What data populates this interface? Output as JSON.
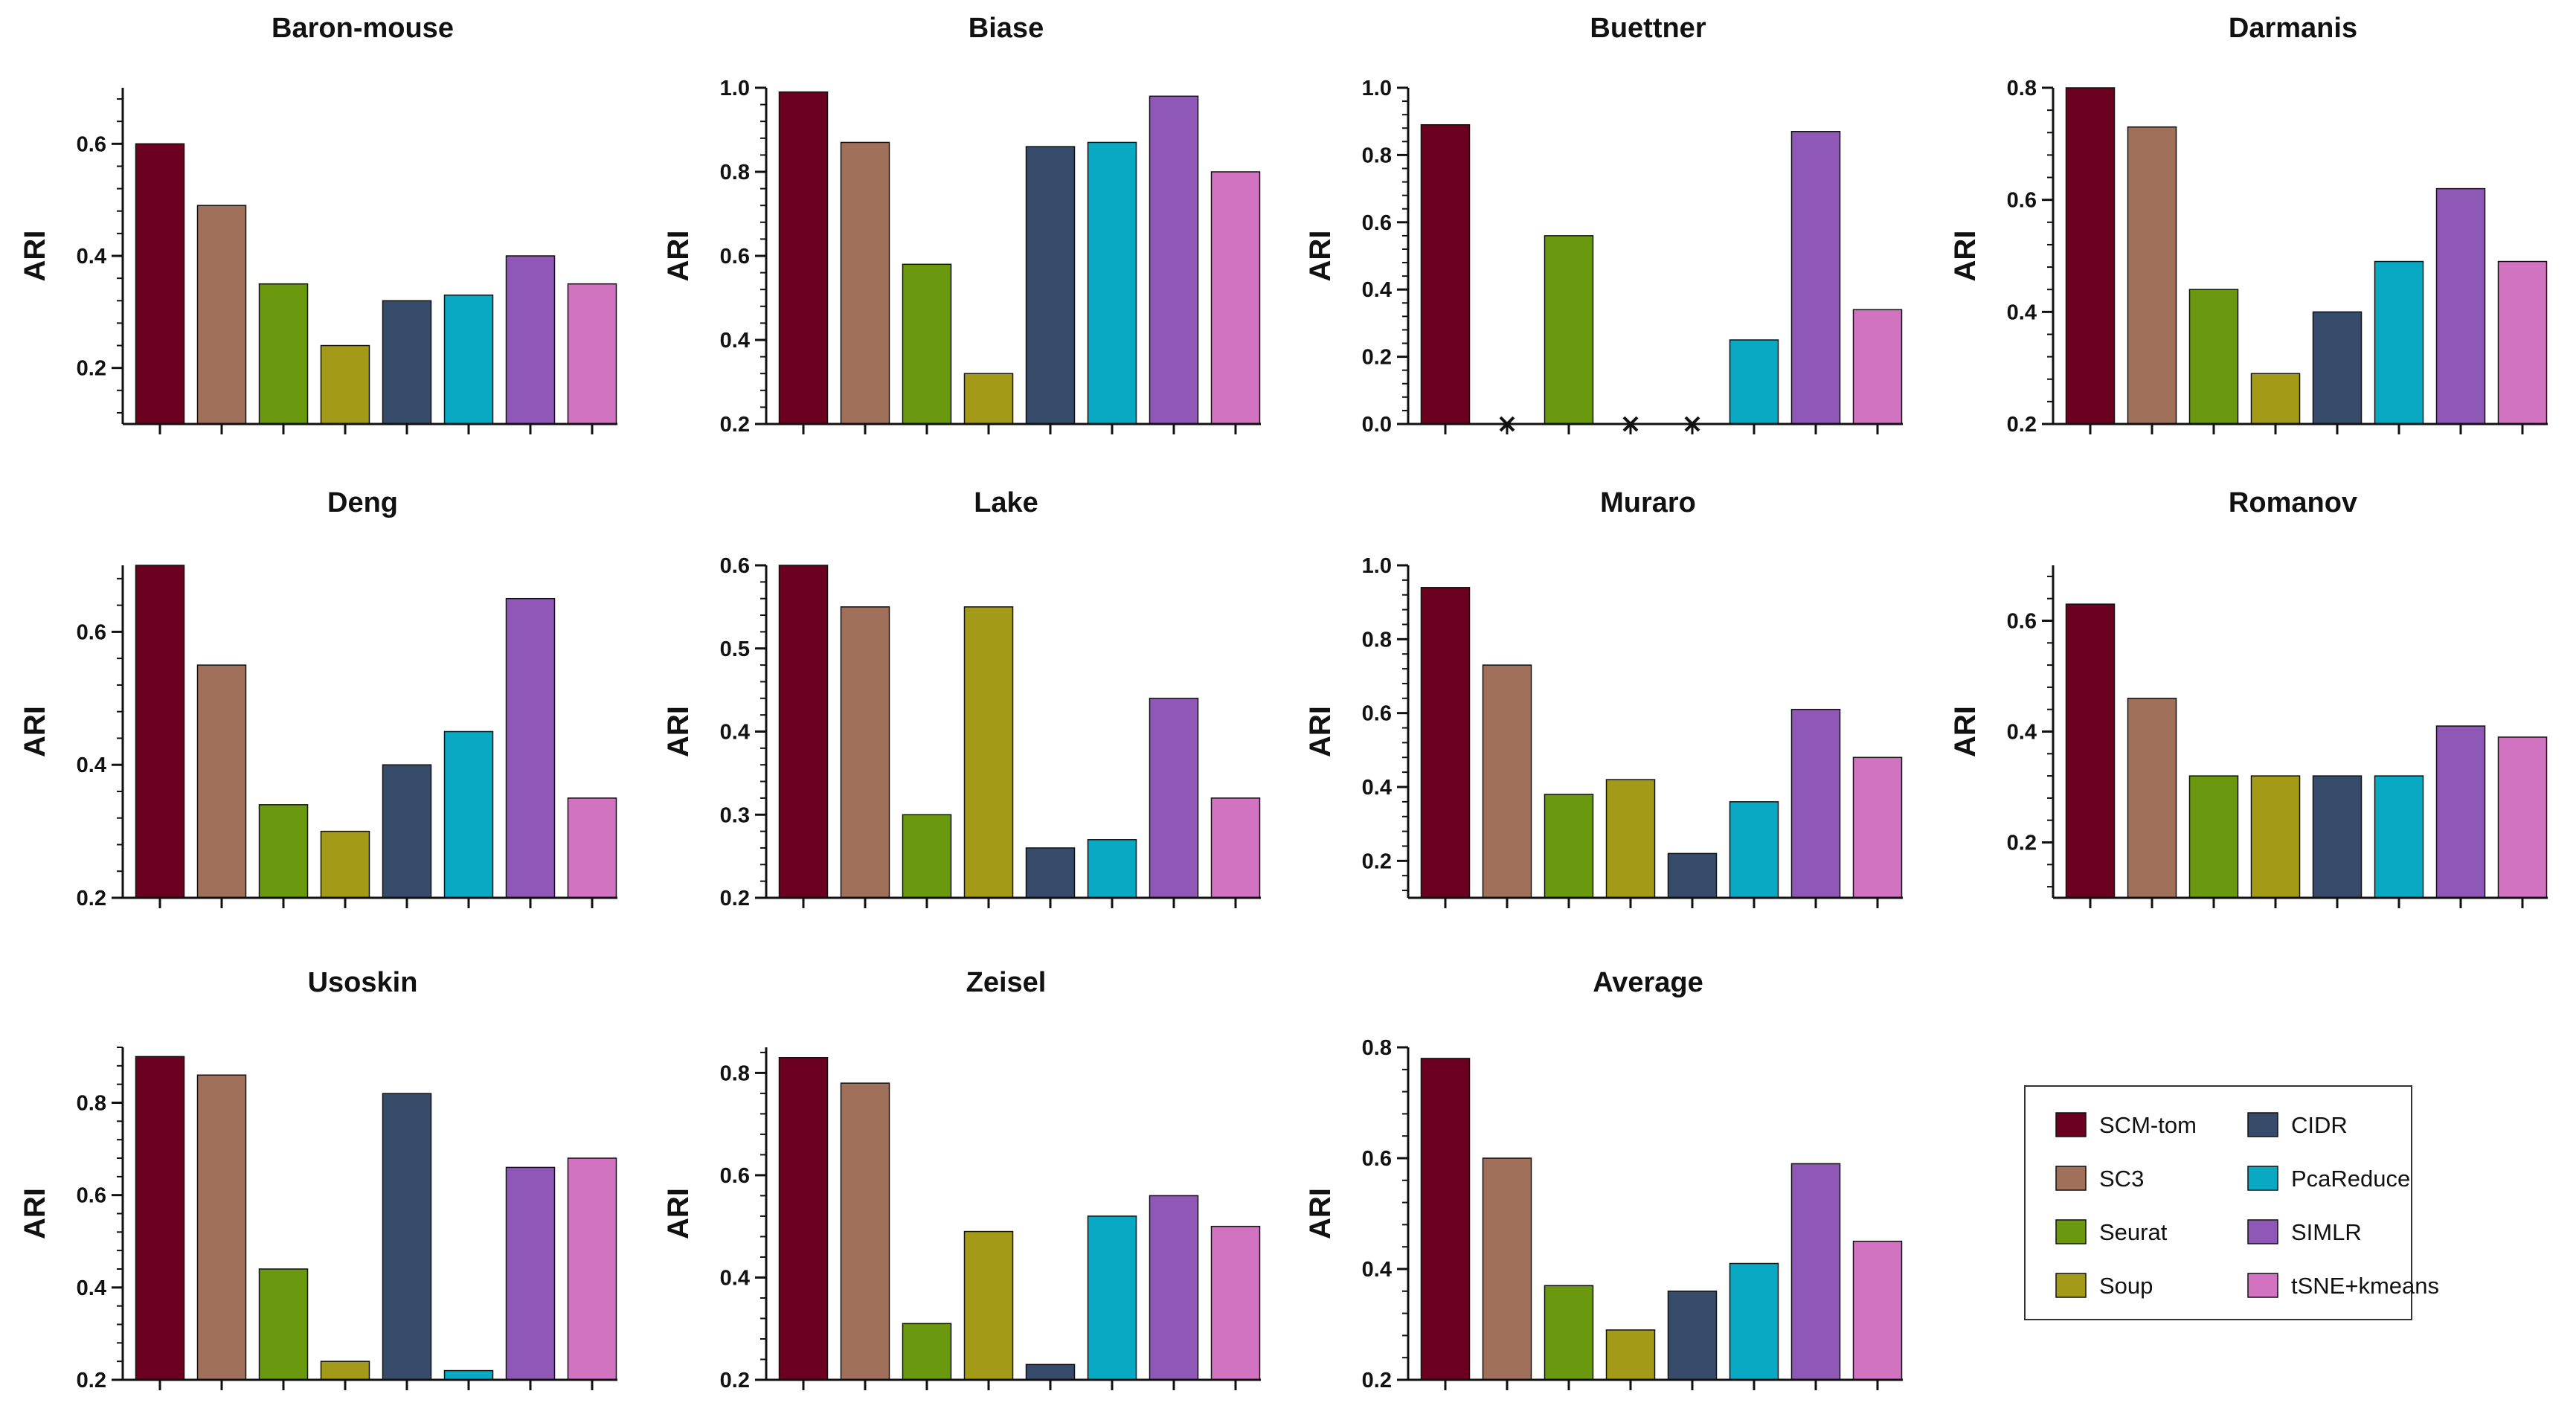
{
  "methods": [
    {
      "name": "SCM-tom",
      "color": "#6b0020"
    },
    {
      "name": "SC3",
      "color": "#a0705a"
    },
    {
      "name": "Seurat",
      "color": "#6a990f"
    },
    {
      "name": "Soup",
      "color": "#a39a17"
    },
    {
      "name": "CIDR",
      "color": "#374b6a"
    },
    {
      "name": "PcaReduce",
      "color": "#09a9c3"
    },
    {
      "name": "SIMLR",
      "color": "#8f57b6"
    },
    {
      "name": "tSNE+kmeans",
      "color": "#d173c0"
    }
  ],
  "legend_placement": "bottom-right",
  "chart_data": [
    {
      "type": "bar",
      "title": "Baron-mouse",
      "ylabel": "ARI",
      "ylim": [
        0.1,
        0.7
      ],
      "yticks": [
        0.2,
        0.4,
        0.6
      ],
      "ytick_labels": [
        "0.2",
        "0.4",
        "0.6"
      ],
      "values": [
        0.6,
        0.49,
        0.35,
        0.24,
        0.32,
        0.33,
        0.4,
        0.35
      ],
      "missing": []
    },
    {
      "type": "bar",
      "title": "Biase",
      "ylabel": "ARI",
      "ylim": [
        0.2,
        1.0
      ],
      "yticks": [
        0.2,
        0.4,
        0.6,
        0.8,
        1.0
      ],
      "ytick_labels": [
        "0.2",
        "0.4",
        "0.6",
        "0.8",
        "1.0"
      ],
      "values": [
        0.99,
        0.87,
        0.58,
        0.32,
        0.86,
        0.87,
        0.98,
        0.8
      ],
      "missing": []
    },
    {
      "type": "bar",
      "title": "Buettner",
      "ylabel": "ARI",
      "ylim": [
        0.0,
        1.0
      ],
      "yticks": [
        0.0,
        0.2,
        0.4,
        0.6,
        0.8,
        1.0
      ],
      "ytick_labels": [
        "0.0",
        "0.2",
        "0.4",
        "0.6",
        "0.8",
        "1.0"
      ],
      "values": [
        0.89,
        0.0,
        0.56,
        0.0,
        0.0,
        0.25,
        0.87,
        0.34
      ],
      "missing": [
        1,
        3,
        4
      ]
    },
    {
      "type": "bar",
      "title": "Darmanis",
      "ylabel": "ARI",
      "ylim": [
        0.2,
        0.8
      ],
      "yticks": [
        0.2,
        0.4,
        0.6,
        0.8
      ],
      "ytick_labels": [
        "0.2",
        "0.4",
        "0.6",
        "0.8"
      ],
      "values": [
        0.8,
        0.73,
        0.44,
        0.29,
        0.4,
        0.49,
        0.62,
        0.49
      ],
      "missing": []
    },
    {
      "type": "bar",
      "title": "Deng",
      "ylabel": "ARI",
      "ylim": [
        0.2,
        0.7
      ],
      "yticks": [
        0.2,
        0.4,
        0.6
      ],
      "ytick_labels": [
        "0.2",
        "0.4",
        "0.6"
      ],
      "values": [
        0.7,
        0.55,
        0.34,
        0.3,
        0.4,
        0.45,
        0.65,
        0.35
      ],
      "missing": []
    },
    {
      "type": "bar",
      "title": "Lake",
      "ylabel": "ARI",
      "ylim": [
        0.2,
        0.6
      ],
      "yticks": [
        0.2,
        0.3,
        0.4,
        0.5,
        0.6
      ],
      "ytick_labels": [
        "0.2",
        "0.3",
        "0.4",
        "0.5",
        "0.6"
      ],
      "values": [
        0.6,
        0.55,
        0.3,
        0.55,
        0.26,
        0.27,
        0.44,
        0.32
      ],
      "missing": []
    },
    {
      "type": "bar",
      "title": "Muraro",
      "ylabel": "ARI",
      "ylim": [
        0.1,
        1.0
      ],
      "yticks": [
        0.2,
        0.4,
        0.6,
        0.8,
        1.0
      ],
      "ytick_labels": [
        "0.2",
        "0.4",
        "0.6",
        "0.8",
        "1.0"
      ],
      "values": [
        0.94,
        0.73,
        0.38,
        0.42,
        0.22,
        0.36,
        0.61,
        0.48
      ],
      "missing": []
    },
    {
      "type": "bar",
      "title": "Romanov",
      "ylabel": "ARI",
      "ylim": [
        0.1,
        0.7
      ],
      "yticks": [
        0.2,
        0.4,
        0.6
      ],
      "ytick_labels": [
        "0.2",
        "0.4",
        "0.6"
      ],
      "values": [
        0.63,
        0.46,
        0.32,
        0.32,
        0.32,
        0.32,
        0.41,
        0.39
      ],
      "missing": []
    },
    {
      "type": "bar",
      "title": "Usoskin",
      "ylabel": "ARI",
      "ylim": [
        0.2,
        0.92
      ],
      "yticks": [
        0.2,
        0.4,
        0.6,
        0.8
      ],
      "ytick_labels": [
        "0.2",
        "0.4",
        "0.6",
        "0.8"
      ],
      "values": [
        0.9,
        0.86,
        0.44,
        0.24,
        0.82,
        0.22,
        0.66,
        0.68
      ],
      "missing": []
    },
    {
      "type": "bar",
      "title": "Zeisel",
      "ylabel": "ARI",
      "ylim": [
        0.2,
        0.85
      ],
      "yticks": [
        0.2,
        0.4,
        0.6,
        0.8
      ],
      "ytick_labels": [
        "0.2",
        "0.4",
        "0.6",
        "0.8"
      ],
      "values": [
        0.83,
        0.78,
        0.31,
        0.49,
        0.23,
        0.52,
        0.56,
        0.5
      ],
      "missing": []
    },
    {
      "type": "bar",
      "title": "Average",
      "ylabel": "ARI",
      "ylim": [
        0.2,
        0.8
      ],
      "yticks": [
        0.2,
        0.4,
        0.6,
        0.8
      ],
      "ytick_labels": [
        "0.2",
        "0.4",
        "0.6",
        "0.8"
      ],
      "values": [
        0.78,
        0.6,
        0.37,
        0.29,
        0.36,
        0.41,
        0.59,
        0.45
      ],
      "missing": []
    }
  ]
}
